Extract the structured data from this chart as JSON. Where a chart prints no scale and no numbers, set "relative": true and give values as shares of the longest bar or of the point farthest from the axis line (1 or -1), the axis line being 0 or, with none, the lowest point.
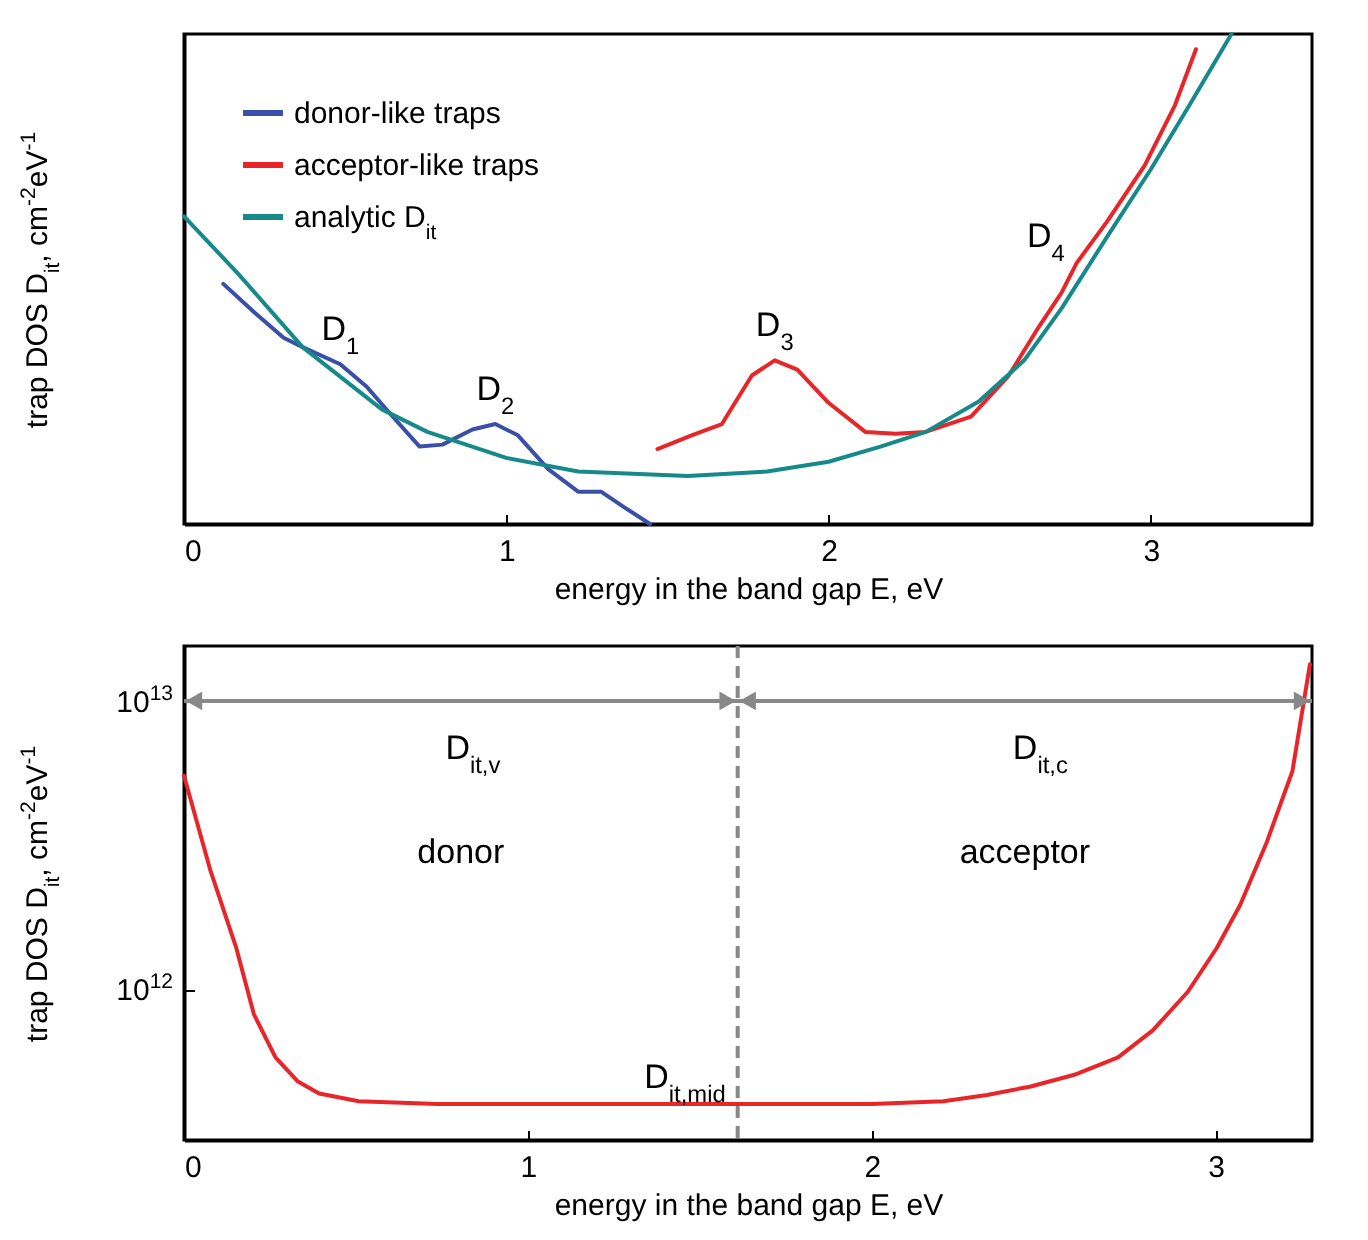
{
  "chart_data": [
    {
      "type": "line",
      "xlabel": "energy in the band gap E, eV",
      "ylabel": "trap DOS D$_{it}$, cm$^{-2}$eV$^{-1}$",
      "relative": true,
      "xlim": [
        0,
        3.5
      ],
      "xticks": [
        0,
        1,
        2,
        3
      ],
      "legend": "top left",
      "annotations": [
        {
          "text": "D$_{1}$",
          "x": 0.485,
          "y": 0.326
        },
        {
          "text": "D$_{2}$",
          "x": 0.966,
          "y": 0.204
        },
        {
          "text": "D$_{3}$",
          "x": 1.833,
          "y": 0.334
        },
        {
          "text": "D$_{4}$",
          "x": 2.77,
          "y": 0.533
        }
      ],
      "series": [
        {
          "name": "donor-like traps",
          "color": "#3a4fa8",
          "x": [
            0.122,
            0.216,
            0.309,
            0.368,
            0.485,
            0.567,
            0.637,
            0.731,
            0.802,
            0.895,
            0.966,
            1.036,
            1.13,
            1.223,
            1.294,
            1.364,
            1.446
          ],
          "values": [
            0.49,
            0.433,
            0.38,
            0.361,
            0.326,
            0.28,
            0.227,
            0.158,
            0.162,
            0.193,
            0.204,
            0.181,
            0.112,
            0.066,
            0.066,
            0.035,
            0
          ]
        },
        {
          "name": "acceptor-like traps",
          "color": "#e8262a",
          "x": [
            1.469,
            1.575,
            1.669,
            1.762,
            1.833,
            1.903,
            1.997,
            2.114,
            2.208,
            2.301,
            2.442,
            2.559,
            2.653,
            2.723,
            2.77,
            2.864,
            2.981,
            3.075,
            3.14
          ],
          "values": [
            0.153,
            0.181,
            0.204,
            0.303,
            0.334,
            0.315,
            0.249,
            0.188,
            0.184,
            0.188,
            0.219,
            0.303,
            0.403,
            0.472,
            0.533,
            0.617,
            0.732,
            0.855,
            0.969
          ]
        },
        {
          "name": "analytic D$_{it}$",
          "color": "#168a8a",
          "x": [
            0,
            0.169,
            0.368,
            0.614,
            0.755,
            1.0,
            1.223,
            1.563,
            1.809,
            2.0,
            2.161,
            2.302,
            2.466,
            2.607,
            2.724,
            2.864,
            3.0,
            3.12,
            3.25
          ],
          "values": [
            0.628,
            0.51,
            0.361,
            0.234,
            0.188,
            0.135,
            0.107,
            0.098,
            0.107,
            0.127,
            0.158,
            0.188,
            0.25,
            0.334,
            0.441,
            0.586,
            0.724,
            0.855,
            1.0
          ]
        }
      ]
    },
    {
      "type": "line",
      "xlabel": "energy in the band gap E, eV",
      "ylabel": "trap DOS D$_{it}$, cm$^{-2}$eV$^{-1}$",
      "log": "y",
      "xlim": [
        0,
        3.28
      ],
      "xticks": [
        0,
        1,
        2,
        3
      ],
      "ylim": [
        300000000000.0,
        15500000000000.0
      ],
      "yticks": [
        {
          "value": 1000000000000.0,
          "label": "10$^{12}$"
        },
        {
          "value": 10000000000000.0,
          "label": "10$^{13}$"
        }
      ],
      "ref_lines": [
        {
          "axis": "x",
          "value": 1.61,
          "color": "#888888",
          "line_style": "dashed"
        },
        {
          "axis": "y",
          "value": 10000000000000.0,
          "color": "#888888",
          "line_style": "solid"
        }
      ],
      "annotations": [
        {
          "text": "D$_{it,v}$",
          "x": 0.84,
          "y": 10000000000000.0
        },
        {
          "text": "D$_{it,c}$",
          "x": 2.49,
          "y": 10000000000000.0
        },
        "donor",
        "acceptor",
        {
          "text": "D$_{it,mid}$",
          "x": 1.61,
          "y": 400000000000.0
        }
      ],
      "series": [
        {
          "color": "#e8262a",
          "x": [
            0,
            0.076,
            0.152,
            0.203,
            0.266,
            0.33,
            0.393,
            0.508,
            0.736,
            1.0,
            1.447,
            2.0,
            2.208,
            2.335,
            2.462,
            2.589,
            2.716,
            2.817,
            2.919,
            3.003,
            3.071,
            3.147,
            3.223,
            3.274
          ],
          "values": [
            5500000000000.0,
            2600000000000.0,
            1390000000000.0,
            820000000000.0,
            580000000000.0,
            480000000000.0,
            435000000000.0,
            409000000000.0,
            400000000000.0,
            400000000000.0,
            400000000000.0,
            400000000000.0,
            409000000000.0,
            430000000000.0,
            460000000000.0,
            505000000000.0,
            580000000000.0,
            720000000000.0,
            980000000000.0,
            1390000000000.0,
            1960000000000.0,
            3200000000000.0,
            5700000000000.0,
            13400000000000.0
          ]
        }
      ]
    }
  ]
}
